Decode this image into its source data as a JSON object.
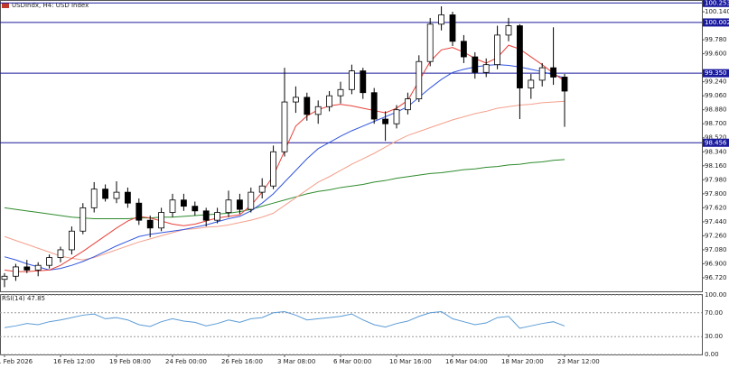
{
  "chart_data": [
    {
      "type": "candlestick",
      "title": "USDIndx, H4: USD Index",
      "categories": [
        "1 Feb 2026",
        null,
        null,
        null,
        null,
        "16 Feb 12:00",
        null,
        null,
        null,
        null,
        "19 Feb 08:00",
        null,
        null,
        null,
        null,
        "24 Feb 00:00",
        null,
        null,
        null,
        null,
        "26 Feb 16:00",
        null,
        null,
        null,
        null,
        "3 Mar 08:00",
        null,
        null,
        null,
        null,
        "6 Mar 00:00",
        null,
        null,
        null,
        null,
        "10 Mar 16:00",
        null,
        null,
        null,
        null,
        "16 Mar 04:00",
        null,
        null,
        null,
        null,
        "18 Mar 20:00",
        null,
        null,
        null,
        null,
        "23 Mar 12:00"
      ],
      "open": [
        96.7,
        96.74,
        96.86,
        96.82,
        96.88,
        96.98,
        97.08,
        97.32,
        97.62,
        97.86,
        97.74,
        97.82,
        97.68,
        97.46,
        97.36,
        97.56,
        97.72,
        97.64,
        97.58,
        97.46,
        97.56,
        97.72,
        97.6,
        97.82,
        97.9,
        98.34,
        98.98,
        99.04,
        98.82,
        98.92,
        99.06,
        99.14,
        99.38,
        99.1,
        98.76,
        98.7,
        98.88,
        99.02,
        99.5,
        99.98,
        100.1,
        99.76,
        99.56,
        99.36,
        99.46,
        99.84,
        99.96,
        99.16,
        99.26,
        99.42,
        99.3
      ],
      "high": [
        96.78,
        96.9,
        96.95,
        96.92,
        97.02,
        97.12,
        97.38,
        97.68,
        97.95,
        97.92,
        97.96,
        97.88,
        97.74,
        97.52,
        97.62,
        97.8,
        97.8,
        97.7,
        97.62,
        97.62,
        97.84,
        97.8,
        97.88,
        98.0,
        98.42,
        99.42,
        99.18,
        99.1,
        99.0,
        99.12,
        99.24,
        99.46,
        99.42,
        99.16,
        98.86,
        98.94,
        99.1,
        99.58,
        100.06,
        100.21,
        100.14,
        99.84,
        99.62,
        99.54,
        99.96,
        100.06,
        99.98,
        99.34,
        99.48,
        99.94,
        99.34
      ],
      "low": [
        96.6,
        96.68,
        96.78,
        96.74,
        96.84,
        96.92,
        97.02,
        97.28,
        97.56,
        97.7,
        97.68,
        97.62,
        97.4,
        97.24,
        97.32,
        97.5,
        97.58,
        97.52,
        97.38,
        97.42,
        97.5,
        97.54,
        97.56,
        97.74,
        97.86,
        98.28,
        98.84,
        98.74,
        98.7,
        98.86,
        98.96,
        99.08,
        99.02,
        98.7,
        98.48,
        98.64,
        98.82,
        98.98,
        99.44,
        99.9,
        99.7,
        99.48,
        99.28,
        99.3,
        99.4,
        99.76,
        98.76,
        99.02,
        99.18,
        99.2,
        98.66
      ],
      "close": [
        96.74,
        96.86,
        96.82,
        96.88,
        96.98,
        97.08,
        97.32,
        97.62,
        97.86,
        97.74,
        97.82,
        97.68,
        97.46,
        97.36,
        97.56,
        97.72,
        97.64,
        97.58,
        97.46,
        97.56,
        97.72,
        97.6,
        97.82,
        97.9,
        98.34,
        98.98,
        99.04,
        98.82,
        98.92,
        99.06,
        99.14,
        99.38,
        99.1,
        98.76,
        98.7,
        98.88,
        99.02,
        99.5,
        99.98,
        100.1,
        99.76,
        99.56,
        99.36,
        99.46,
        99.84,
        99.96,
        99.16,
        99.26,
        99.42,
        99.3,
        99.12
      ],
      "series": [
        {
          "color": "#2e8b2e",
          "values": [
            97.62,
            97.6,
            97.58,
            97.56,
            97.54,
            97.52,
            97.5,
            97.49,
            97.48,
            97.48,
            97.48,
            97.48,
            97.49,
            97.49,
            97.5,
            97.5,
            97.51,
            97.52,
            97.53,
            97.54,
            97.55,
            97.57,
            97.6,
            97.64,
            97.68,
            97.72,
            97.76,
            97.8,
            97.83,
            97.85,
            97.88,
            97.9,
            97.92,
            97.95,
            97.97,
            98.0,
            98.02,
            98.04,
            98.06,
            98.07,
            98.09,
            98.11,
            98.12,
            98.14,
            98.15,
            98.17,
            98.18,
            98.2,
            98.21,
            98.23,
            98.24
          ]
        },
        {
          "color": "#f4a08c",
          "values": [
            97.25,
            97.2,
            97.15,
            97.1,
            97.05,
            97.0,
            96.97,
            96.95,
            96.98,
            97.03,
            97.08,
            97.13,
            97.18,
            97.22,
            97.26,
            97.3,
            97.34,
            97.35,
            97.37,
            97.38,
            97.4,
            97.43,
            97.46,
            97.5,
            97.55,
            97.65,
            97.75,
            97.85,
            97.95,
            98.02,
            98.1,
            98.18,
            98.25,
            98.32,
            98.4,
            98.48,
            98.55,
            98.6,
            98.65,
            98.7,
            98.75,
            98.79,
            98.83,
            98.86,
            98.9,
            98.92,
            98.94,
            98.95,
            98.97,
            98.98,
            98.99
          ]
        },
        {
          "color": "#3355dd",
          "values": [
            96.99,
            96.95,
            96.9,
            96.86,
            96.82,
            96.84,
            96.88,
            96.93,
            96.99,
            97.06,
            97.13,
            97.19,
            97.25,
            97.28,
            97.3,
            97.32,
            97.34,
            97.37,
            97.4,
            97.44,
            97.48,
            97.51,
            97.58,
            97.68,
            97.8,
            97.95,
            98.1,
            98.25,
            98.38,
            98.46,
            98.54,
            98.61,
            98.67,
            98.73,
            98.79,
            98.85,
            98.92,
            99.04,
            99.16,
            99.27,
            99.36,
            99.4,
            99.43,
            99.45,
            99.46,
            99.45,
            99.43,
            99.4,
            99.37,
            99.33,
            99.29
          ]
        },
        {
          "color": "#e8413a",
          "values": [
            96.82,
            96.8,
            96.8,
            96.81,
            96.82,
            96.88,
            96.97,
            97.06,
            97.16,
            97.26,
            97.36,
            97.45,
            97.51,
            97.49,
            97.45,
            97.41,
            97.39,
            97.41,
            97.45,
            97.49,
            97.51,
            97.53,
            97.65,
            97.82,
            98.03,
            98.35,
            98.67,
            98.8,
            98.88,
            98.93,
            98.95,
            98.93,
            98.9,
            98.87,
            98.84,
            98.9,
            99.0,
            99.25,
            99.5,
            99.65,
            99.68,
            99.62,
            99.54,
            99.48,
            99.55,
            99.71,
            99.66,
            99.56,
            99.46,
            99.35,
            99.25
          ]
        }
      ],
      "levels": [
        {
          "value": 100.253,
          "label": "100.253"
        },
        {
          "value": 100.002,
          "label": "100.002"
        },
        {
          "value": 99.35,
          "label": "99.350"
        },
        {
          "value": 98.456,
          "label": "98.456"
        }
      ],
      "level_color": "#1a1a9c",
      "ylim": [
        96.546,
        100.291
      ],
      "yticks": [
        {
          "value": 100.14,
          "label": "100.140"
        },
        {
          "value": 99.78,
          "label": "99.780"
        },
        {
          "value": 99.6,
          "label": "99.600"
        },
        {
          "value": 99.24,
          "label": "99.240"
        },
        {
          "value": 99.06,
          "label": "99.060"
        },
        {
          "value": 98.88,
          "label": "98.880"
        },
        {
          "value": 98.7,
          "label": "98.700"
        },
        {
          "value": 98.52,
          "label": "98.520"
        },
        {
          "value": 98.34,
          "label": "98.340"
        },
        {
          "value": 98.16,
          "label": "98.160"
        },
        {
          "value": 97.98,
          "label": "97.980"
        },
        {
          "value": 97.8,
          "label": "97.800"
        },
        {
          "value": 97.62,
          "label": "97.620"
        },
        {
          "value": 97.44,
          "label": "97.440"
        },
        {
          "value": 97.26,
          "label": "97.260"
        },
        {
          "value": 97.08,
          "label": "97.080"
        },
        {
          "value": 96.9,
          "label": "96.900"
        },
        {
          "value": 96.72,
          "label": "96.720"
        }
      ]
    },
    {
      "type": "line",
      "title": "RSI(14) 47.85",
      "color": "#5b9bd5",
      "values": [
        45,
        48,
        52,
        50,
        55,
        58,
        62,
        66,
        68,
        60,
        62,
        58,
        50,
        47,
        55,
        60,
        56,
        54,
        48,
        52,
        58,
        54,
        60,
        62,
        70,
        72,
        66,
        58,
        60,
        62,
        64,
        68,
        58,
        50,
        46,
        52,
        56,
        64,
        70,
        72,
        60,
        55,
        50,
        53,
        62,
        64,
        44,
        48,
        52,
        55,
        47.85
      ],
      "ylim": [
        0,
        100
      ],
      "yticks": [
        {
          "value": 100,
          "label": "100.00"
        },
        {
          "value": 70,
          "label": "70.00"
        },
        {
          "value": 30,
          "label": "30.00"
        },
        {
          "value": 0,
          "label": "0.00"
        }
      ]
    }
  ]
}
